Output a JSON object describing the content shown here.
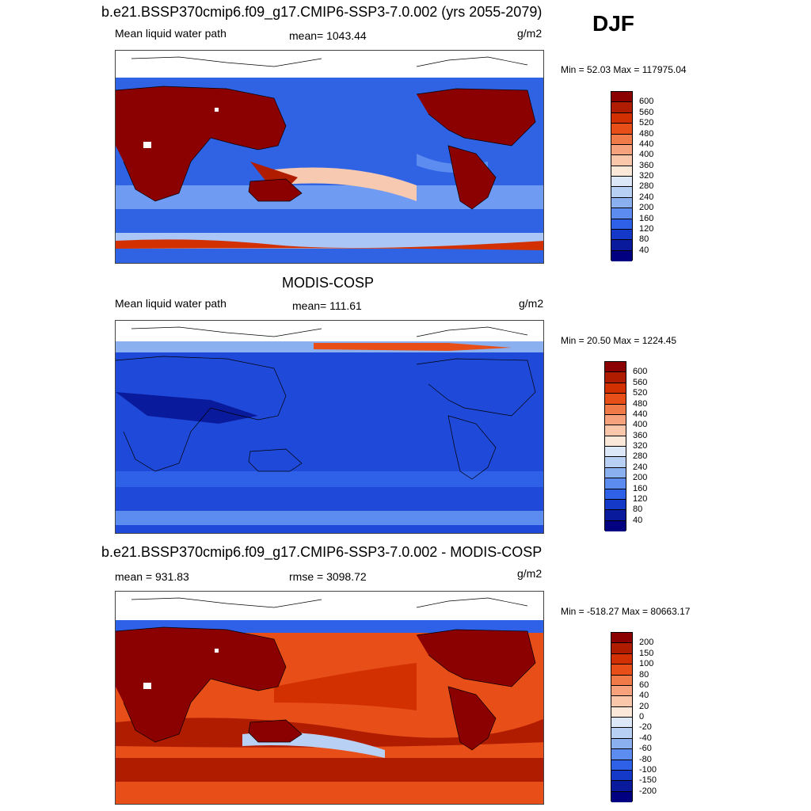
{
  "djf": "DJF",
  "panels": [
    {
      "title": "b.e21.BSSP370cmip6.f09_g17.CMIP6-SSP3-7.0.002 (yrs 2055-2079)",
      "left": "Mean liquid water path",
      "mid": "mean= 1043.44",
      "units": "g/m2",
      "minmax": "Min =  52.03 Max = 117975.04",
      "ticks": [
        "600",
        "560",
        "520",
        "480",
        "440",
        "400",
        "360",
        "320",
        "280",
        "240",
        "200",
        "160",
        "120",
        "80",
        "40"
      ]
    },
    {
      "title": "MODIS-COSP",
      "left": "Mean liquid water path",
      "mid": "mean= 111.61",
      "units": "g/m2",
      "minmax": "Min =  20.50 Max = 1224.45",
      "ticks": [
        "600",
        "560",
        "520",
        "480",
        "440",
        "400",
        "360",
        "320",
        "280",
        "240",
        "200",
        "160",
        "120",
        "80",
        "40"
      ]
    },
    {
      "title": "b.e21.BSSP370cmip6.f09_g17.CMIP6-SSP3-7.0.002 - MODIS-COSP",
      "left": "mean = 931.83",
      "mid": "rmse = 3098.72",
      "units": "g/m2",
      "minmax": "Min = -518.27 Max = 80663.17",
      "ticks": [
        "200",
        "150",
        "100",
        "80",
        "60",
        "40",
        "20",
        "0",
        "-20",
        "-40",
        "-60",
        "-80",
        "-100",
        "-150",
        "-200"
      ]
    }
  ],
  "colorbar": {
    "colors": [
      "#8b0000",
      "#b01c00",
      "#d23000",
      "#e84e18",
      "#f07a48",
      "#f6a27c",
      "#fac7aa",
      "#fce8d8",
      "#dce8f8",
      "#b8d0f4",
      "#8ab0f0",
      "#5c8cf0",
      "#2e60e8",
      "#1438c8",
      "#0a1a9c",
      "#000080"
    ]
  }
}
